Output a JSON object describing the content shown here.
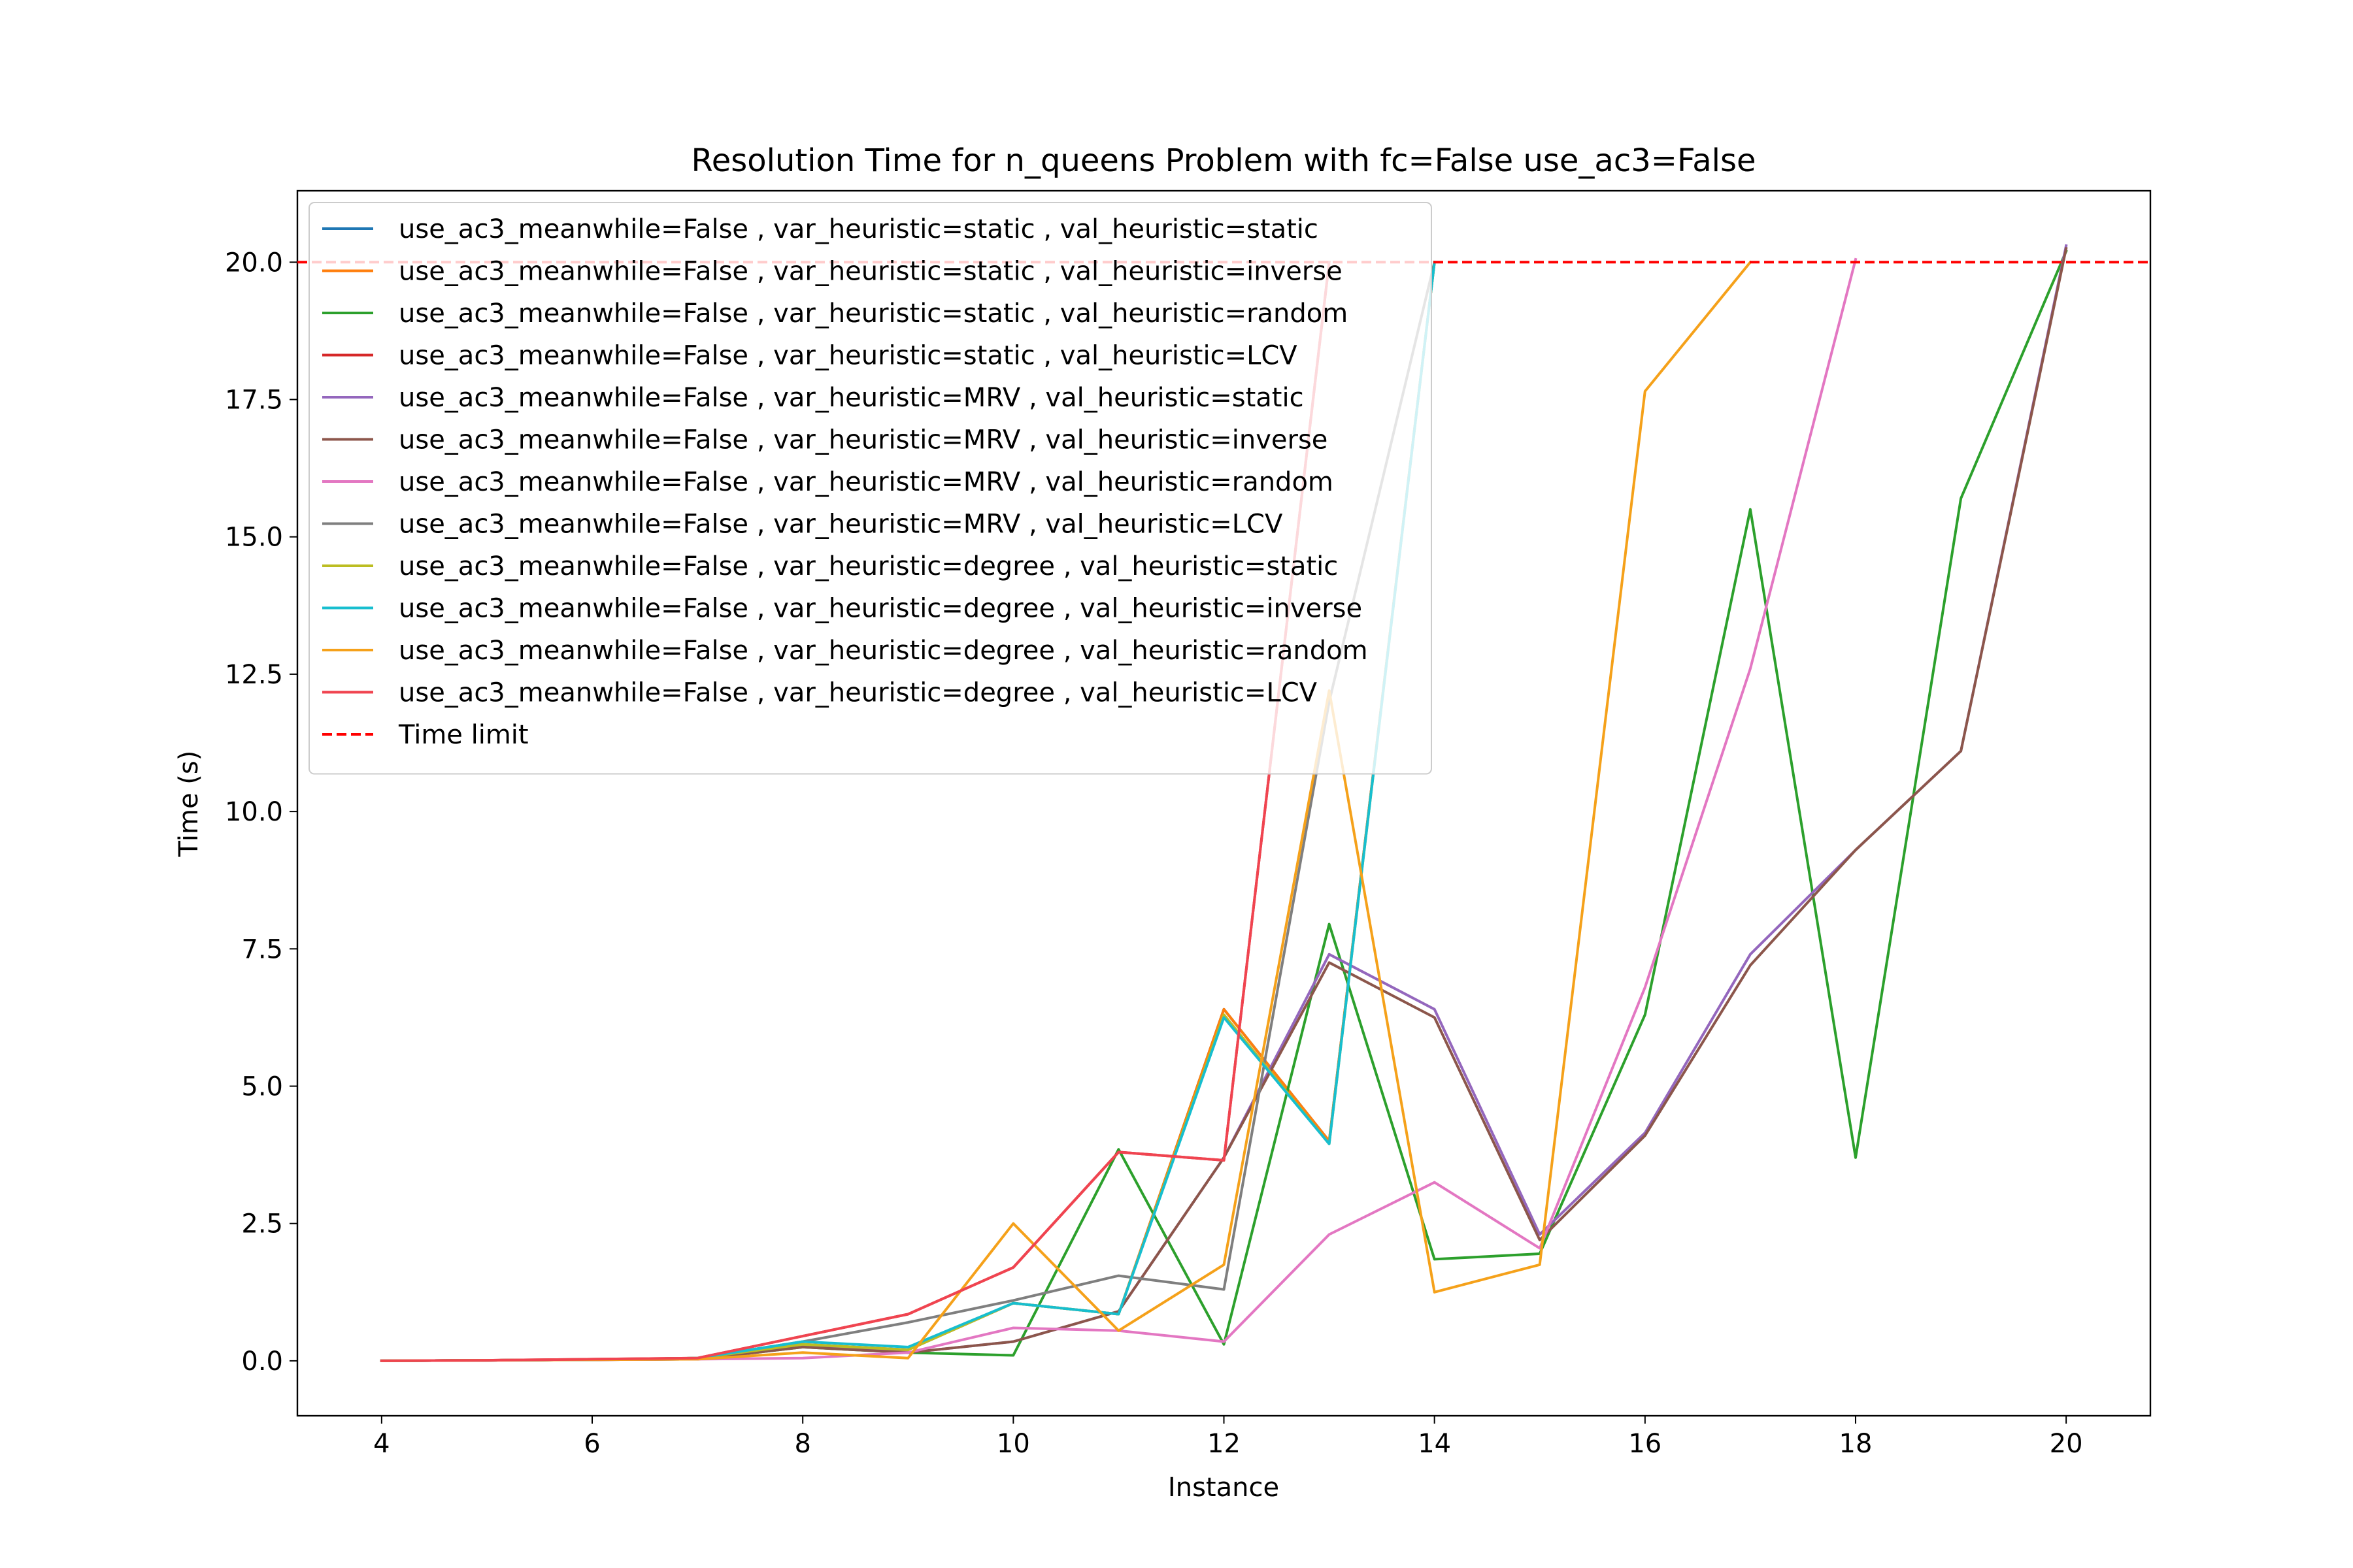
{
  "chart_data": {
    "type": "line",
    "title": "Resolution Time for n_queens Problem with fc=False use_ac3=False",
    "xlabel": "Instance",
    "ylabel": "Time (s)",
    "xlim": [
      3.2,
      20.8
    ],
    "ylim": [
      -1.0,
      21.3
    ],
    "xticks": [
      4,
      6,
      8,
      10,
      12,
      14,
      16,
      18,
      20
    ],
    "yticks": [
      0.0,
      2.5,
      5.0,
      7.5,
      10.0,
      12.5,
      15.0,
      17.5,
      20.0
    ],
    "xtick_labels": [
      "4",
      "6",
      "8",
      "10",
      "12",
      "14",
      "16",
      "18",
      "20"
    ],
    "ytick_labels": [
      "0.0",
      "2.5",
      "5.0",
      "7.5",
      "10.0",
      "12.5",
      "15.0",
      "17.5",
      "20.0"
    ],
    "legend_position": "top-left",
    "time_limit": {
      "label": "Time limit",
      "value": 20.0,
      "color": "#ff0000"
    },
    "series": [
      {
        "name": "use_ac3_meanwhile=False , var_heuristic=static , val_heuristic=static",
        "color": "#1f77b4",
        "x": [
          4,
          5,
          6,
          7,
          8,
          9,
          10,
          11,
          12,
          13,
          14
        ],
        "y": [
          0,
          0.01,
          0.02,
          0.05,
          0.3,
          0.2,
          1.05,
          0.85,
          6.4,
          4.0,
          20.0
        ]
      },
      {
        "name": "use_ac3_meanwhile=False , var_heuristic=static , val_heuristic=inverse",
        "color": "#ff7f0e",
        "x": [
          4,
          5,
          6,
          7,
          8,
          9,
          10,
          11,
          12,
          13,
          14
        ],
        "y": [
          0,
          0.01,
          0.02,
          0.05,
          0.3,
          0.2,
          1.05,
          0.85,
          6.4,
          4.0,
          20.0
        ]
      },
      {
        "name": "use_ac3_meanwhile=False , var_heuristic=static , val_heuristic=random",
        "color": "#2ca02c",
        "x": [
          4,
          5,
          6,
          7,
          8,
          9,
          10,
          11,
          12,
          13,
          14,
          15,
          16,
          17,
          18,
          19,
          20
        ],
        "y": [
          0,
          0.01,
          0.02,
          0.03,
          0.25,
          0.15,
          0.1,
          3.85,
          0.3,
          7.95,
          1.85,
          1.95,
          6.3,
          15.5,
          3.7,
          15.7,
          20.2
        ]
      },
      {
        "name": "use_ac3_meanwhile=False , var_heuristic=static , val_heuristic=LCV",
        "color": "#d62728",
        "x": [
          4,
          5,
          6,
          7,
          8,
          9,
          10,
          11,
          12,
          13
        ],
        "y": [
          0,
          0.01,
          0.03,
          0.05,
          0.45,
          0.85,
          1.7,
          3.8,
          3.65,
          20.0
        ]
      },
      {
        "name": "use_ac3_meanwhile=False , var_heuristic=MRV , val_heuristic=static",
        "color": "#9467bd",
        "x": [
          4,
          5,
          6,
          7,
          8,
          9,
          10,
          11,
          12,
          13,
          14,
          15,
          16,
          17,
          18,
          19,
          20
        ],
        "y": [
          0,
          0.01,
          0.02,
          0.03,
          0.3,
          0.15,
          0.35,
          0.9,
          3.7,
          7.4,
          6.4,
          2.3,
          4.15,
          7.4,
          9.3,
          11.1,
          20.3
        ]
      },
      {
        "name": "use_ac3_meanwhile=False , var_heuristic=MRV , val_heuristic=inverse",
        "color": "#8c564b",
        "x": [
          4,
          5,
          6,
          7,
          8,
          9,
          10,
          11,
          12,
          13,
          14,
          15,
          16,
          17,
          18,
          19,
          20
        ],
        "y": [
          0,
          0.01,
          0.02,
          0.03,
          0.25,
          0.15,
          0.35,
          0.9,
          3.7,
          7.25,
          6.25,
          2.2,
          4.1,
          7.2,
          9.3,
          11.1,
          20.25
        ]
      },
      {
        "name": "use_ac3_meanwhile=False , var_heuristic=MRV , val_heuristic=random",
        "color": "#e377c2",
        "x": [
          4,
          5,
          6,
          7,
          8,
          9,
          10,
          11,
          12,
          13,
          14,
          15,
          16,
          17,
          18
        ],
        "y": [
          0,
          0.01,
          0.02,
          0.03,
          0.05,
          0.15,
          0.6,
          0.55,
          0.35,
          2.3,
          3.25,
          2.05,
          6.8,
          12.6,
          20.05
        ]
      },
      {
        "name": "use_ac3_meanwhile=False , var_heuristic=MRV , val_heuristic=LCV",
        "color": "#7f7f7f",
        "x": [
          4,
          5,
          6,
          7,
          8,
          9,
          10,
          11,
          12,
          13,
          14
        ],
        "y": [
          0,
          0.01,
          0.02,
          0.05,
          0.35,
          0.7,
          1.1,
          1.55,
          1.3,
          12.0,
          20.0
        ]
      },
      {
        "name": "use_ac3_meanwhile=False , var_heuristic=degree , val_heuristic=static",
        "color": "#bcbd22",
        "x": [
          4,
          5,
          6,
          7,
          8,
          9,
          10,
          11,
          12,
          13,
          14
        ],
        "y": [
          0,
          0.01,
          0.02,
          0.05,
          0.3,
          0.2,
          1.05,
          0.85,
          6.3,
          3.95,
          20.0
        ]
      },
      {
        "name": "use_ac3_meanwhile=False , var_heuristic=degree , val_heuristic=inverse",
        "color": "#17becf",
        "x": [
          4,
          5,
          6,
          7,
          8,
          9,
          10,
          11,
          12,
          13,
          14
        ],
        "y": [
          0,
          0.01,
          0.02,
          0.05,
          0.35,
          0.25,
          1.05,
          0.85,
          6.25,
          3.95,
          20.0
        ]
      },
      {
        "name": "use_ac3_meanwhile=False , var_heuristic=degree , val_heuristic=random",
        "color": "#f5a11a",
        "x": [
          4,
          5,
          6,
          7,
          8,
          9,
          10,
          11,
          12,
          13,
          14,
          15,
          16,
          17
        ],
        "y": [
          0,
          0.01,
          0.02,
          0.03,
          0.15,
          0.05,
          2.5,
          0.55,
          1.75,
          12.2,
          1.25,
          1.75,
          17.65,
          20.0
        ]
      },
      {
        "name": "use_ac3_meanwhile=False , var_heuristic=degree , val_heuristic=LCV",
        "color": "#f04450",
        "x": [
          4,
          5,
          6,
          7,
          8,
          9,
          10,
          11,
          12,
          13
        ],
        "y": [
          0,
          0.01,
          0.03,
          0.05,
          0.45,
          0.85,
          1.7,
          3.8,
          3.65,
          20.0
        ]
      }
    ]
  }
}
